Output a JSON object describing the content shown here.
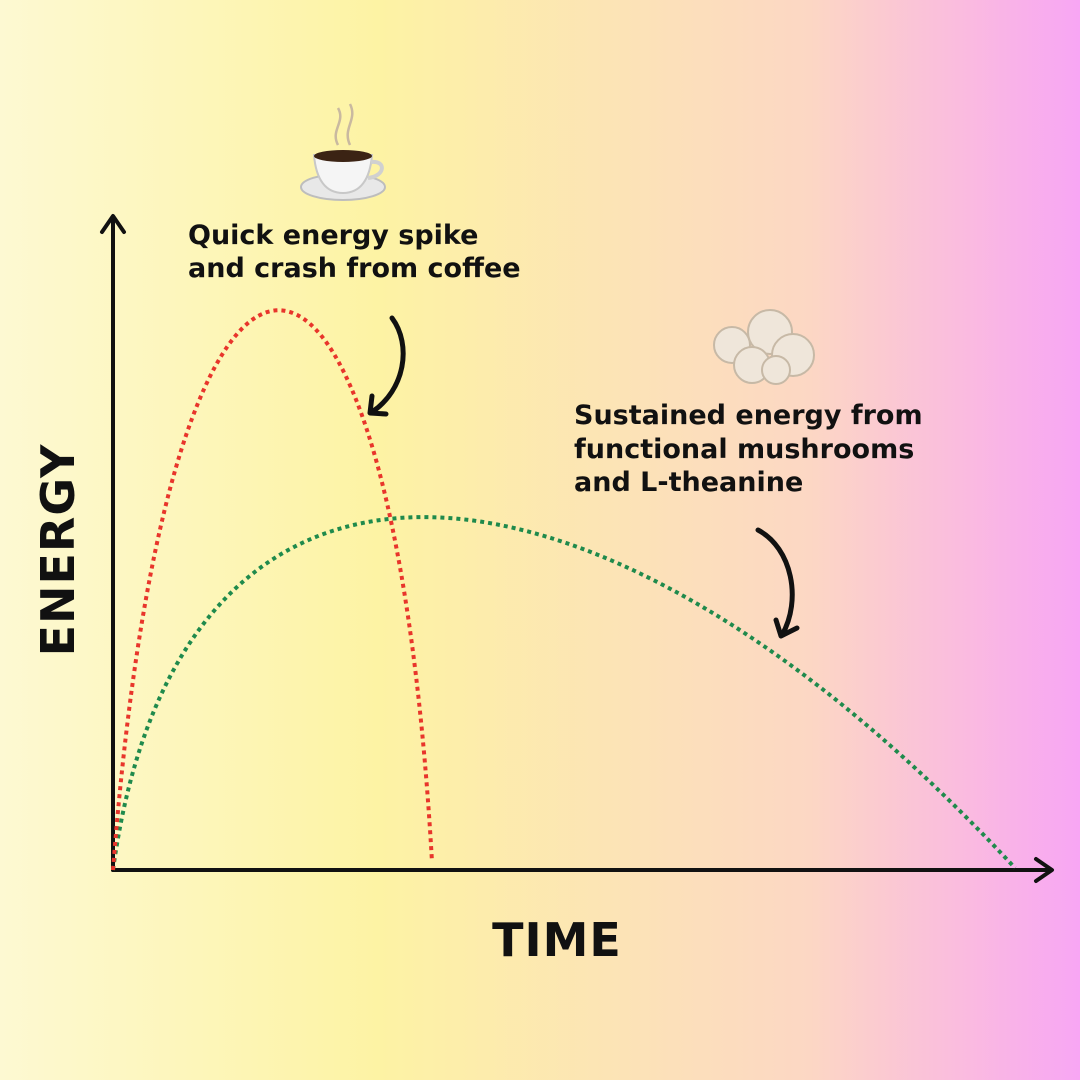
{
  "axes": {
    "y_label": "ENERGY",
    "x_label": "TIME"
  },
  "annotations": {
    "coffee": [
      "Quick energy spike",
      "and crash from coffee"
    ],
    "mushrooms": [
      "Sustained energy from",
      "functional mushrooms",
      "and L-theanine"
    ]
  }
}
